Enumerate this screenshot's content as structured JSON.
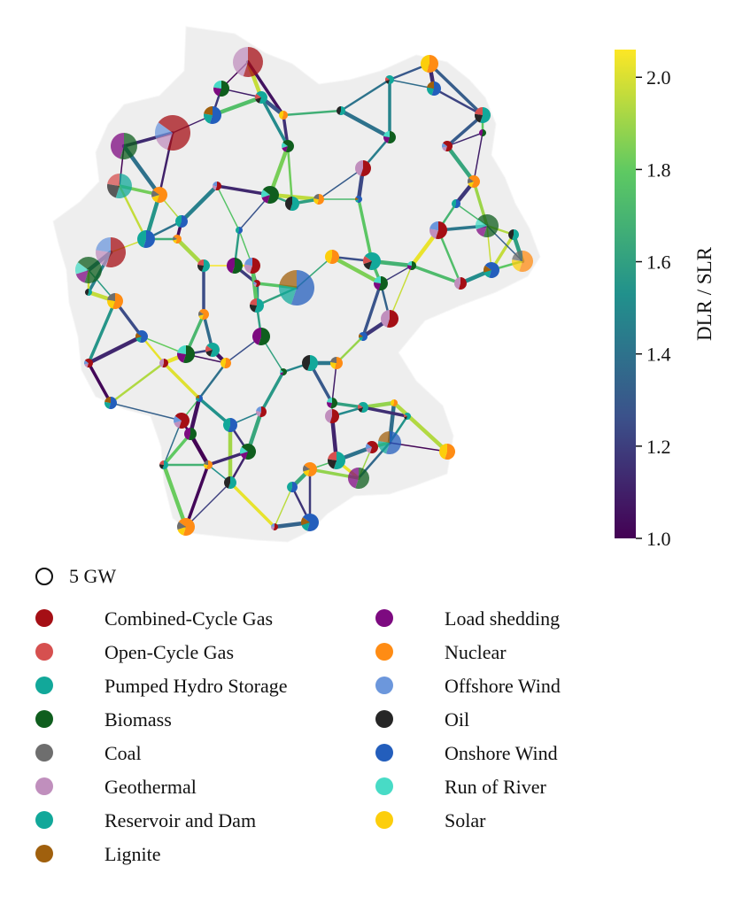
{
  "colorbar": {
    "title": "DLR / SLR",
    "ticks": [
      {
        "value": 1.0,
        "label": "1.0"
      },
      {
        "value": 1.2,
        "label": "1.2"
      },
      {
        "value": 1.4,
        "label": "1.4"
      },
      {
        "value": 1.6,
        "label": "1.6"
      },
      {
        "value": 1.8,
        "label": "1.8"
      },
      {
        "value": 2.0,
        "label": "2.0"
      }
    ],
    "range": [
      1.0,
      2.06
    ],
    "colormap": [
      "#440154",
      "#3b528b",
      "#21918c",
      "#5ec962",
      "#fde725"
    ]
  },
  "legend": {
    "size_ref_label": "5 GW",
    "carriers_left": [
      {
        "name": "Combined-Cycle Gas",
        "color": "#a50f15"
      },
      {
        "name": "Open-Cycle Gas",
        "color": "#d6504f"
      },
      {
        "name": "Pumped Hydro Storage",
        "color": "#12a89a"
      },
      {
        "name": "Biomass",
        "color": "#0f5e1e"
      },
      {
        "name": "Coal",
        "color": "#6e6e6e"
      },
      {
        "name": "Geothermal",
        "color": "#c08fbd"
      },
      {
        "name": "Reservoir and Dam",
        "color": "#12a89a"
      },
      {
        "name": "Lignite",
        "color": "#a0600d"
      }
    ],
    "carriers_right": [
      {
        "name": "Load shedding",
        "color": "#7d0a80"
      },
      {
        "name": "Nuclear",
        "color": "#ff8c14"
      },
      {
        "name": "Offshore Wind",
        "color": "#6c97dc"
      },
      {
        "name": "Oil",
        "color": "#262626"
      },
      {
        "name": "Onshore Wind",
        "color": "#235ebc"
      },
      {
        "name": "Run of River",
        "color": "#48dbc6"
      },
      {
        "name": "Solar",
        "color": "#fcce0c"
      }
    ]
  }
}
